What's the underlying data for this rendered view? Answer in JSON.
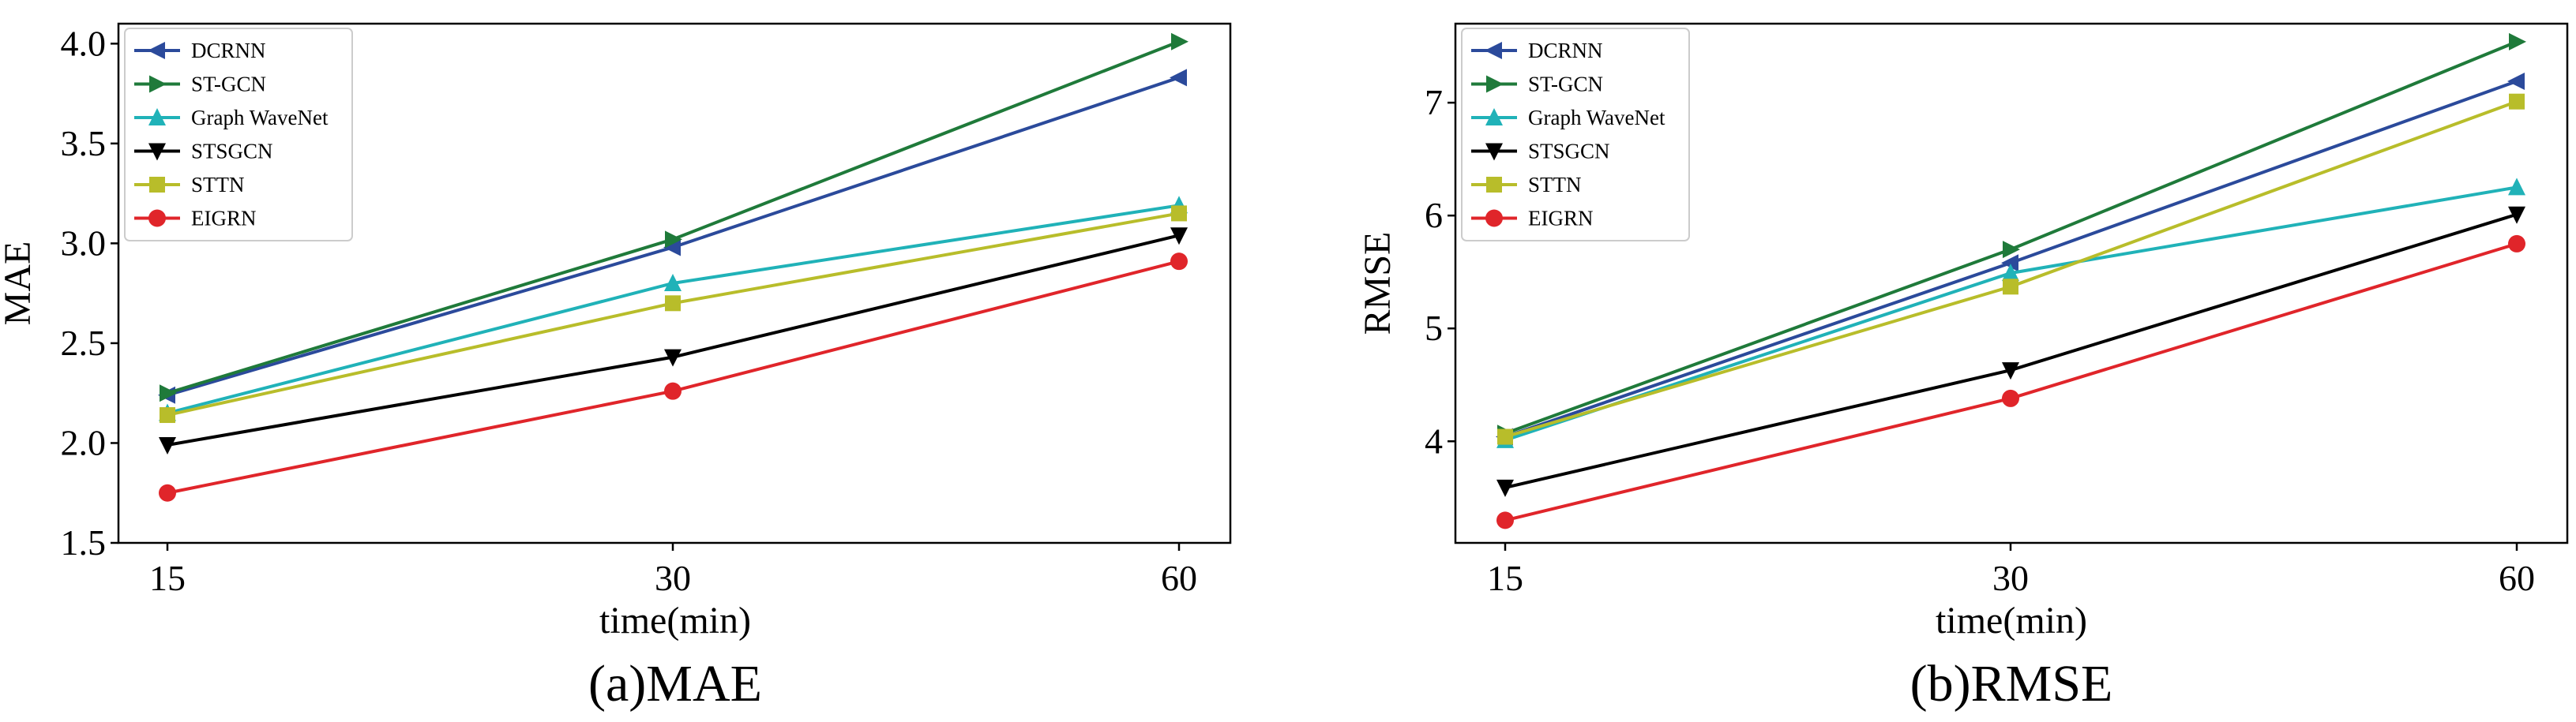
{
  "chart_data": [
    {
      "type": "line",
      "caption": "(a)MAE",
      "xlabel": "time(min)",
      "ylabel": "MAE",
      "categories": [
        "15",
        "30",
        "60"
      ],
      "ylim": [
        1.5,
        4.1
      ],
      "yticks": [
        "1.5",
        "2.0",
        "2.5",
        "3.0",
        "3.5",
        "4.0"
      ],
      "legend_position": "top-left",
      "series": [
        {
          "name": "DCRNN",
          "color": "#2b4a9b",
          "marker": "triangle-left",
          "values": [
            2.24,
            2.98,
            3.83
          ]
        },
        {
          "name": "ST-GCN",
          "color": "#1f7a3a",
          "marker": "triangle-right",
          "values": [
            2.25,
            3.02,
            4.01
          ]
        },
        {
          "name": "Graph WaveNet",
          "color": "#20b2b8",
          "marker": "triangle-up",
          "values": [
            2.15,
            2.8,
            3.19
          ]
        },
        {
          "name": "STSGCN",
          "color": "#000000",
          "marker": "triangle-down",
          "values": [
            1.99,
            2.43,
            3.04
          ]
        },
        {
          "name": "STTN",
          "color": "#b8bd2a",
          "marker": "square",
          "values": [
            2.14,
            2.7,
            3.15
          ]
        },
        {
          "name": "EIGRN",
          "color": "#e0252a",
          "marker": "circle",
          "values": [
            1.75,
            2.26,
            2.91
          ]
        }
      ]
    },
    {
      "type": "line",
      "caption": "(b)RMSE",
      "xlabel": "time(min)",
      "ylabel": "RMSE",
      "categories": [
        "15",
        "30",
        "60"
      ],
      "ylim": [
        3.1,
        7.7
      ],
      "yticks": [
        "4",
        "5",
        "6",
        "7"
      ],
      "legend_position": "top-left",
      "series": [
        {
          "name": "DCRNN",
          "color": "#2b4a9b",
          "marker": "triangle-left",
          "values": [
            4.04,
            5.58,
            7.19
          ]
        },
        {
          "name": "ST-GCN",
          "color": "#1f7a3a",
          "marker": "triangle-right",
          "values": [
            4.07,
            5.7,
            7.54
          ]
        },
        {
          "name": "Graph WaveNet",
          "color": "#20b2b8",
          "marker": "triangle-up",
          "values": [
            4.01,
            5.49,
            6.25
          ]
        },
        {
          "name": "STSGCN",
          "color": "#000000",
          "marker": "triangle-down",
          "values": [
            3.59,
            4.63,
            6.01
          ]
        },
        {
          "name": "STTN",
          "color": "#b8bd2a",
          "marker": "square",
          "values": [
            4.04,
            5.37,
            7.01
          ]
        },
        {
          "name": "EIGRN",
          "color": "#e0252a",
          "marker": "circle",
          "values": [
            3.3,
            4.38,
            5.75
          ]
        }
      ]
    }
  ]
}
